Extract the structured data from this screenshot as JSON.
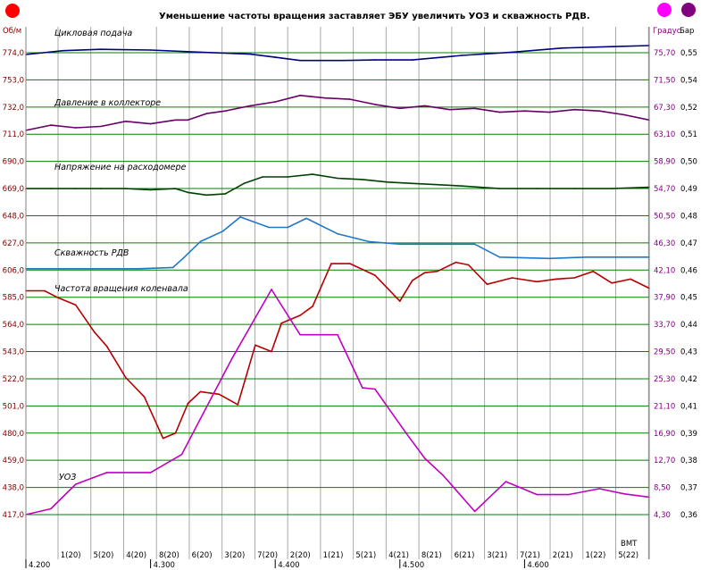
{
  "chart_data": {
    "type": "line",
    "title": "Уменьшение частоты вращения заставляет ЭБУ увеличить УОЗ и скважность РДВ.",
    "left_axis_unit": "Об/м",
    "right_axis_unit_1": "Градус",
    "right_axis_unit_2": "Бар",
    "left_ticks": [
      "774,0",
      "753,0",
      "732,0",
      "711,0",
      "690,0",
      "669,0",
      "648,0",
      "627,0",
      "606,0",
      "585,0",
      "564,0",
      "543,0",
      "522,0",
      "501,0",
      "480,0",
      "459,0",
      "438,0",
      "417,0"
    ],
    "right_ticks_1": [
      "75,70",
      "71,50",
      "67,30",
      "63,10",
      "58,90",
      "54,70",
      "50,50",
      "46,30",
      "42,10",
      "37,90",
      "33,70",
      "29,50",
      "25,30",
      "21,10",
      "16,90",
      "12,70",
      "8,50",
      "4,30"
    ],
    "right_ticks_2": [
      "0,55",
      "0,54",
      "0,52",
      "0,51",
      "0,50",
      "0,49",
      "0,48",
      "0,47",
      "0,46",
      "0,45",
      "0,44",
      "0,43",
      "0,42",
      "0,41",
      "0,39",
      "0,38",
      "0,37",
      "0,36"
    ],
    "ylim_left": [
      417.0,
      774.0
    ],
    "ylim_right_1": [
      4.3,
      75.7
    ],
    "x_label": "ВМТ",
    "x_ticks_top": [
      "1(20)",
      "5(20)",
      "4(20)",
      "8(20)",
      "6(20)",
      "3(20)",
      "7(20)",
      "2(20)",
      "1(21)",
      "5(21)",
      "4(21)",
      "8(21)",
      "6(21)",
      "3(21)",
      "7(21)",
      "2(21)",
      "1(22)",
      "5(22)"
    ],
    "x_ticks_bottom": [
      "4.200",
      "4.300",
      "4.400",
      "4.500",
      "4.600"
    ],
    "x_range": [
      4.2,
      4.7
    ],
    "grid": true,
    "legend": "inline labels",
    "colors": {
      "background": "#ffffff",
      "grid_horizontal": "#008000",
      "grid_vertical": "#a8a8a8",
      "left_axis_text": "#800000",
      "right_axis_text_1": "#800080",
      "right_axis_text_2": "#000000",
      "indicator_left": "#ff0000",
      "indicator_right_1": "#ff00ff",
      "indicator_right_2": "#800080"
    },
    "series": [
      {
        "name": "Цикловая подача",
        "color": "#000080",
        "axis": "left",
        "x": [
          4.2,
          4.23,
          4.26,
          4.3,
          4.34,
          4.38,
          4.4,
          4.42,
          4.455,
          4.48,
          4.51,
          4.55,
          4.59,
          4.63,
          4.67,
          4.7
        ],
        "values": [
          772.6,
          775.6,
          776.6,
          776.1,
          774.4,
          772.9,
          770.5,
          768.0,
          768.0,
          768.4,
          768.4,
          771.9,
          774.4,
          777.6,
          778.7,
          779.5
        ]
      },
      {
        "name": "Давление в коллекторе",
        "color": "#660066",
        "axis": "left",
        "x": [
          4.2,
          4.22,
          4.24,
          4.26,
          4.28,
          4.3,
          4.32,
          4.33,
          4.345,
          4.36,
          4.38,
          4.4,
          4.42,
          4.44,
          4.46,
          4.48,
          4.5,
          4.52,
          4.54,
          4.56,
          4.58,
          4.6,
          4.62,
          4.64,
          4.66,
          4.68,
          4.7
        ],
        "values": [
          714,
          718,
          716,
          717,
          721,
          719,
          722,
          722,
          727,
          729,
          733,
          736,
          741,
          739,
          738,
          734,
          731,
          733,
          730,
          731,
          728,
          729,
          728,
          730,
          729,
          726,
          722
        ]
      },
      {
        "name": "Напряжение на расходомере",
        "color": "#004000",
        "axis": "left",
        "x": [
          4.2,
          4.22,
          4.24,
          4.26,
          4.28,
          4.3,
          4.32,
          4.33,
          4.345,
          4.36,
          4.375,
          4.39,
          4.41,
          4.43,
          4.45,
          4.47,
          4.49,
          4.51,
          4.53,
          4.55,
          4.58,
          4.61,
          4.64,
          4.67,
          4.7
        ],
        "values": [
          669,
          669,
          669,
          669,
          669,
          668,
          669,
          666,
          664,
          665,
          673,
          678,
          678,
          680,
          677,
          676,
          674,
          673,
          672,
          671,
          669,
          669,
          669,
          669,
          670
        ]
      },
      {
        "name": "Скважность РДВ",
        "color": "#1e78c8",
        "axis": "left",
        "x": [
          4.2,
          4.23,
          4.26,
          4.29,
          4.318,
          4.326,
          4.34,
          4.358,
          4.372,
          4.395,
          4.41,
          4.425,
          4.45,
          4.475,
          4.5,
          4.53,
          4.545,
          4.56,
          4.58,
          4.62,
          4.65,
          4.7
        ],
        "values": [
          607,
          607,
          607,
          607,
          608,
          615,
          628,
          636,
          647,
          639,
          639,
          646,
          634,
          628,
          626,
          626,
          626,
          626,
          616,
          615,
          616,
          616
        ]
      },
      {
        "name": "Частота вращения коленвала",
        "color": "#b40000",
        "axis": "left",
        "x": [
          4.2,
          4.215,
          4.225,
          4.24,
          4.255,
          4.265,
          4.28,
          4.295,
          4.31,
          4.32,
          4.33,
          4.34,
          4.355,
          4.37,
          4.384,
          4.397,
          4.405,
          4.42,
          4.43,
          4.445,
          4.46,
          4.48,
          4.5,
          4.51,
          4.52,
          4.53,
          4.545,
          4.555,
          4.57,
          4.59,
          4.61,
          4.625,
          4.64,
          4.655,
          4.67,
          4.685,
          4.7
        ],
        "values": [
          590,
          590,
          585,
          579,
          558,
          547,
          523,
          508,
          476,
          480,
          503,
          512,
          510,
          502,
          548,
          543,
          565,
          571,
          578,
          611,
          611,
          602,
          582,
          598,
          604,
          605,
          612,
          610,
          595,
          600,
          597,
          599,
          600,
          605,
          596,
          599,
          592
        ]
      },
      {
        "name": "УОЗ",
        "color": "#c000c0",
        "axis": "right_1",
        "x": [
          4.2,
          4.22,
          4.24,
          4.265,
          4.3,
          4.325,
          4.365,
          4.397,
          4.42,
          4.45,
          4.47,
          4.48,
          4.505,
          4.52,
          4.535,
          4.56,
          4.585,
          4.61,
          4.635,
          4.66,
          4.68,
          4.7
        ],
        "values": [
          4.3,
          5.2,
          9.0,
          10.8,
          10.8,
          13.6,
          28.3,
          39.1,
          32.1,
          32.1,
          23.9,
          23.7,
          16.9,
          13.0,
          10.3,
          4.8,
          9.4,
          7.4,
          7.4,
          8.3,
          7.5,
          7.0
        ]
      }
    ]
  }
}
